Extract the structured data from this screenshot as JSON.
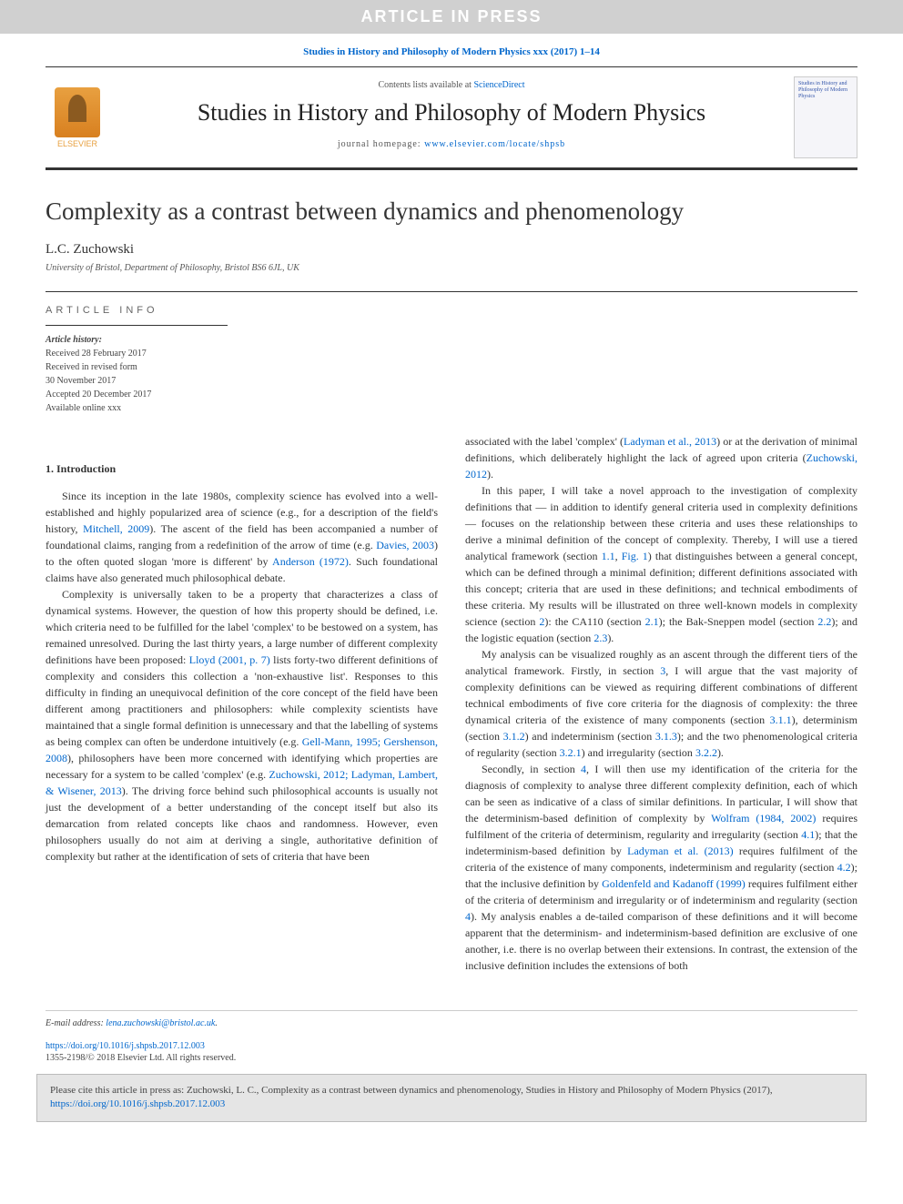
{
  "banner": "ARTICLE IN PRESS",
  "cite_top": "Studies in History and Philosophy of Modern Physics xxx (2017) 1–14",
  "header": {
    "contents_prefix": "Contents lists available at ",
    "contents_link": "ScienceDirect",
    "journal": "Studies in History and Philosophy of Modern Physics",
    "homepage_prefix": "journal homepage: ",
    "homepage_url": "www.elsevier.com/locate/shpsb",
    "logo_label": "ELSEVIER",
    "cover_text": "Studies in History and Philosophy of Modern Physics"
  },
  "title": "Complexity as a contrast between dynamics and phenomenology",
  "author": "L.C. Zuchowski",
  "affiliation": "University of Bristol, Department of Philosophy, Bristol BS6 6JL, UK",
  "info_heading": "ARTICLE INFO",
  "history": {
    "label": "Article history:",
    "received": "Received 28 February 2017",
    "revised1": "Received in revised form",
    "revised2": "30 November 2017",
    "accepted": "Accepted 20 December 2017",
    "online": "Available online xxx"
  },
  "section1": "1. Introduction",
  "col1": {
    "p1a": "Since its inception in the late 1980s, complexity science has evolved into a well-established and highly popularized area of science (e.g., for a description of the field's history, ",
    "p1b": "Mitchell, 2009",
    "p1c": "). The ascent of the field has been accompanied a number of foundational claims, ranging from a redefinition of the arrow of time (e.g. ",
    "p1d": "Davies, 2003",
    "p1e": ") to the often quoted slogan 'more is different' by ",
    "p1f": "Anderson (1972)",
    "p1g": ". Such foundational claims have also generated much philosophical debate.",
    "p2a": "Complexity is universally taken to be a property that characterizes a class of dynamical systems. However, the question of how this property should be defined, i.e. which criteria need to be fulfilled for the label 'complex' to be bestowed on a system, has remained unresolved. During the last thirty years, a large number of different complexity definitions have been proposed: ",
    "p2b": "Lloyd (2001, p. 7)",
    "p2c": " lists forty-two different definitions of complexity and considers this collection a 'non-exhaustive list'. Responses to this difficulty in finding an unequivocal definition of the core concept of the field have been different among practitioners and philosophers: while complexity scientists have maintained that a single formal definition is unnecessary and that the labelling of systems as being complex can often be underdone intuitively (e.g. ",
    "p2d": "Gell-Mann, 1995; Gershenson, 2008",
    "p2e": "), philosophers have been more concerned with identifying which properties are necessary for a system to be called 'complex' (e.g. ",
    "p2f": "Zuchowski, 2012; Ladyman, Lambert, & Wisener, 2013",
    "p2g": "). The driving force behind such philosophical accounts is usually not just the development of a better understanding of the concept itself but also its demarcation from related concepts like chaos and randomness. However, even philosophers usually do not aim at deriving a single, authoritative definition of complexity but rather at the identification of sets of criteria that have been"
  },
  "col2": {
    "p0a": "associated with the label 'complex' (",
    "p0b": "Ladyman et al., 2013",
    "p0c": ") or at the derivation of minimal definitions, which deliberately highlight the lack of agreed upon criteria (",
    "p0d": "Zuchowski, 2012",
    "p0e": ").",
    "p1a": "In this paper, I will take a novel approach to the investigation of complexity definitions that — in addition to identify general criteria used in complexity definitions — focuses on the relationship between these criteria and uses these relationships to derive a minimal definition of the concept of complexity. Thereby, I will use a tiered analytical framework (section ",
    "p1b": "1.1",
    "p1c": ", ",
    "p1d": "Fig. 1",
    "p1e": ") that distinguishes between a general concept, which can be defined through a minimal definition; different definitions associated with this concept; criteria that are used in these definitions; and technical embodiments of these criteria. My results will be illustrated on three well-known models in complexity science (section ",
    "p1f": "2",
    "p1g": "): the CA110 (section ",
    "p1h": "2.1",
    "p1i": "); the Bak-Sneppen model (section ",
    "p1j": "2.2",
    "p1k": "); and the logistic equation (section ",
    "p1l": "2.3",
    "p1m": ").",
    "p2a": "My analysis can be visualized roughly as an ascent through the different tiers of the analytical framework. Firstly, in section ",
    "p2b": "3",
    "p2c": ", I will argue that the vast majority of complexity definitions can be viewed as requiring different combinations of different technical embodiments of five core criteria for the diagnosis of complexity: the three dynamical criteria of the existence of many components (section ",
    "p2d": "3.1.1",
    "p2e": "), determinism (section ",
    "p2f": "3.1.2",
    "p2g": ") and indeterminism (section ",
    "p2h": "3.1.3",
    "p2i": "); and the two phenomenological criteria of regularity (section ",
    "p2j": "3.2.1",
    "p2k": ") and irregularity (section ",
    "p2l": "3.2.2",
    "p2m": ").",
    "p3a": "Secondly, in section ",
    "p3b": "4",
    "p3c": ", I will then use my identification of the criteria for the diagnosis of complexity to analyse three different complexity definition, each of which can be seen as indicative of a class of similar definitions. In particular, I will show that the determinism-based definition of complexity by ",
    "p3d": "Wolfram (1984, 2002)",
    "p3e": " requires fulfilment of the criteria of determinism, regularity and irregularity (section ",
    "p3f": "4.1",
    "p3g": "); that the indeterminism-based definition by ",
    "p3h": "Ladyman et al. (2013)",
    "p3i": " requires fulfilment of the criteria of the existence of many components, indeterminism and regularity (section ",
    "p3j": "4.2",
    "p3k": "); that the inclusive definition by ",
    "p3l": "Goldenfeld and Kadanoff (1999)",
    "p3m": " requires fulfilment either of the criteria of determinism and irregularity or of indeterminism and regularity (section ",
    "p3n": "4",
    "p3o": "). My analysis enables a de-tailed comparison of these definitions and it will become apparent that the determinism- and indeterminism-based definition are exclusive of one another, i.e. there is no overlap between their extensions. In contrast, the extension of the inclusive definition includes the extensions of both"
  },
  "footer": {
    "email_label": "E-mail address: ",
    "email": "lena.zuchowski@bristol.ac.uk",
    "doi": "https://doi.org/10.1016/j.shpsb.2017.12.003",
    "copyright": "1355-2198/© 2018 Elsevier Ltd. All rights reserved."
  },
  "citebox": {
    "text": "Please cite this article in press as: Zuchowski, L. C., Complexity as a contrast between dynamics and phenomenology, Studies in History and Philosophy of Modern Physics (2017), ",
    "link": "https://doi.org/10.1016/j.shpsb.2017.12.003"
  },
  "colors": {
    "link": "#0066cc",
    "banner_bg": "#d0d0d0",
    "citebox_bg": "#e5e5e5"
  }
}
